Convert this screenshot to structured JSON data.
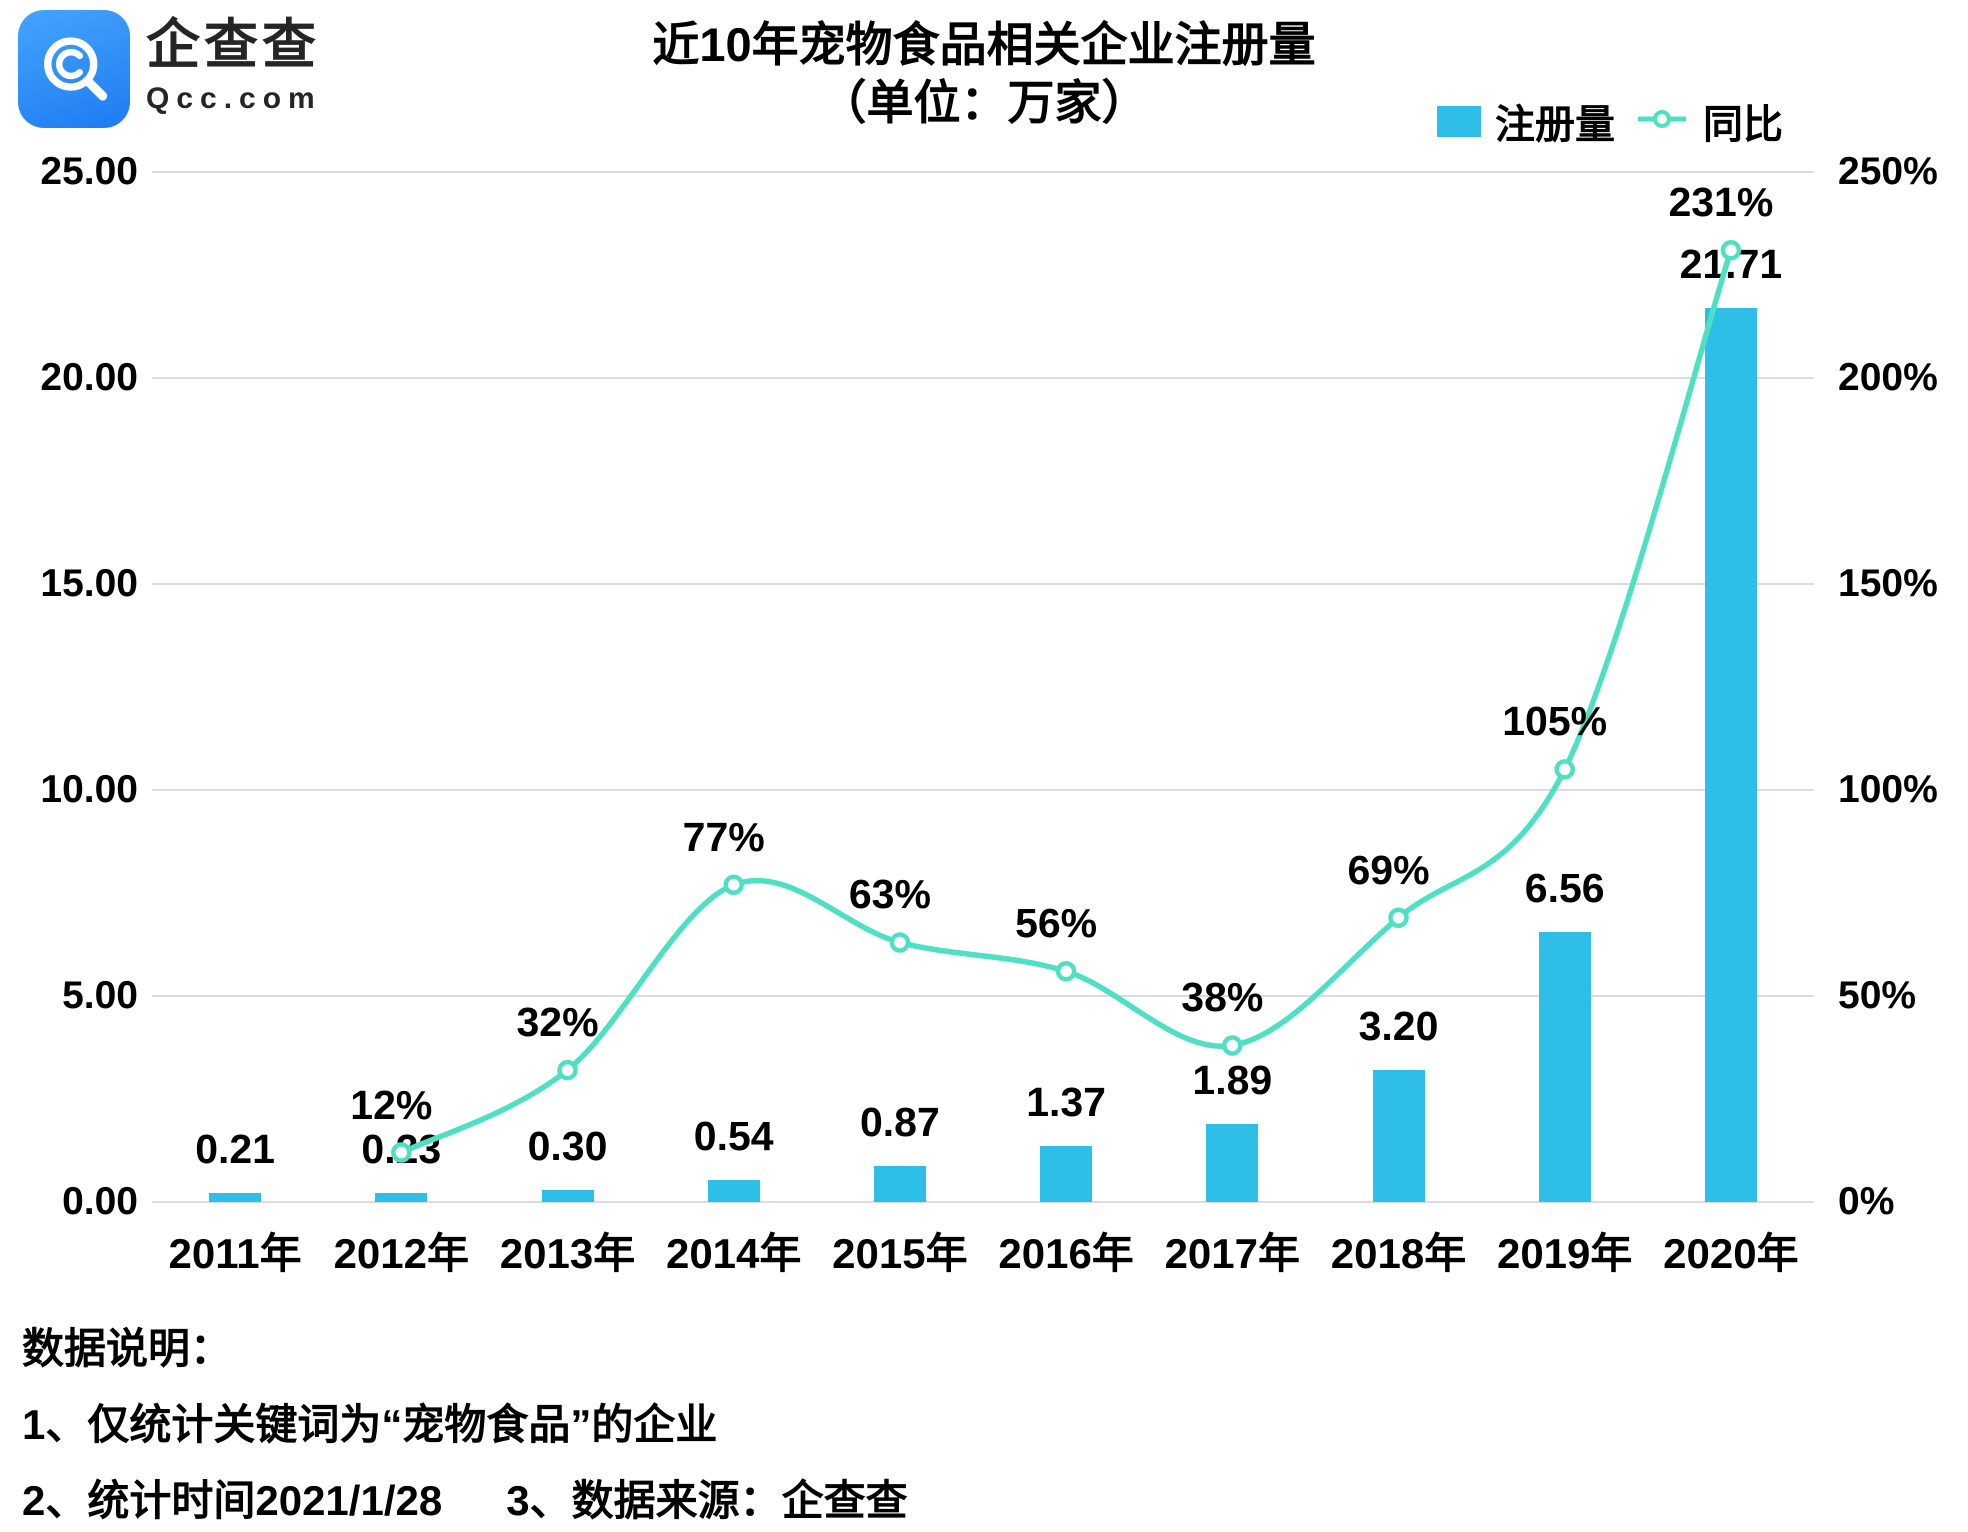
{
  "header": {
    "brand_cn": "企查查",
    "brand_en": "Qcc.com",
    "title": "近10年宠物食品相关企业注册量",
    "subtitle": "（单位：万家）"
  },
  "legend": {
    "bar_label": "注册量",
    "line_label": "同比"
  },
  "chart_data": {
    "type": "bar",
    "title": "近10年宠物食品相关企业注册量",
    "subtitle": "（单位：万家）",
    "categories": [
      "2011年",
      "2012年",
      "2013年",
      "2014年",
      "2015年",
      "2016年",
      "2017年",
      "2018年",
      "2019年",
      "2020年"
    ],
    "series": [
      {
        "name": "注册量",
        "type": "bar",
        "axis": "left",
        "unit": "万家",
        "color": "#2dbfe8",
        "values": [
          0.21,
          0.23,
          0.3,
          0.54,
          0.87,
          1.37,
          1.89,
          3.2,
          6.56,
          21.71
        ],
        "labels": [
          "0.21",
          "0.23",
          "0.30",
          "0.54",
          "0.87",
          "1.37",
          "1.89",
          "3.20",
          "6.56",
          "21.71"
        ]
      },
      {
        "name": "同比",
        "type": "line",
        "axis": "right",
        "color": "#4ee0c2",
        "values": [
          null,
          12,
          32,
          77,
          63,
          56,
          38,
          69,
          105,
          231
        ],
        "labels": [
          "",
          "12%",
          "32%",
          "77%",
          "63%",
          "56%",
          "38%",
          "69%",
          "105%",
          "231%"
        ]
      }
    ],
    "y_left": {
      "min": 0,
      "max": 25,
      "ticks": [
        "0.00",
        "5.00",
        "10.00",
        "15.00",
        "20.00",
        "25.00"
      ]
    },
    "y_right": {
      "min": 0,
      "max": 250,
      "ticks": [
        "0%",
        "50%",
        "100%",
        "150%",
        "200%",
        "250%"
      ]
    },
    "grid": true,
    "gridline_color": "#dcdcdc",
    "text_color": "#000000",
    "legend_position": "top-right"
  },
  "footer": {
    "heading": "数据说明：",
    "note1": "1、仅统计关键词为“宠物食品”的企业",
    "note2": "2、统计时间2021/1/28",
    "note3": "3、数据来源：企查查"
  }
}
